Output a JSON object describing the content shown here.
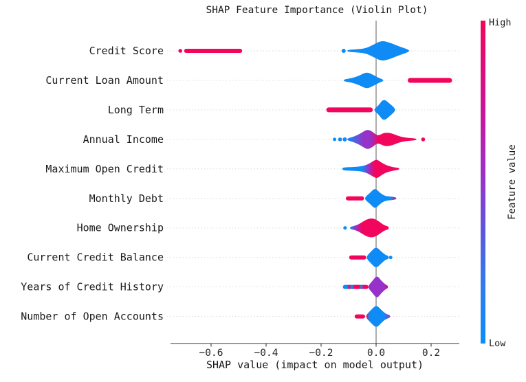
{
  "chart_data": {
    "type": "violin",
    "title": "SHAP Feature Importance (Violin Plot)",
    "xlabel": "SHAP value (impact on model output)",
    "xlim": [
      -0.7475,
      0.3025
    ],
    "grid": "dotted-horizontal",
    "features": [
      "Credit Score",
      "Current Loan Amount",
      "Long Term",
      "Annual Income",
      "Maximum Open Credit",
      "Monthly Debt",
      "Home Ownership",
      "Current Credit Balance",
      "Years of Credit History",
      "Number of Open Accounts"
    ],
    "x_ticks": [
      {
        "v": -0.6,
        "label": "−0.6"
      },
      {
        "v": -0.4,
        "label": "−0.4"
      },
      {
        "v": -0.2,
        "label": "−0.2"
      },
      {
        "v": 0.0,
        "label": "0.0"
      },
      {
        "v": 0.2,
        "label": "0.2"
      }
    ],
    "colorbar": {
      "title": "Feature value",
      "high_label": "High",
      "low_label": "Low"
    },
    "palette": {
      "high": "#f2055c",
      "mid": "#9632c8",
      "low": "#0f8bf5",
      "grid": "#dcdcdc",
      "zero_line": "#8a8a8a",
      "axis": "#333333",
      "cbar_stops": [
        [
          0.0,
          "#f2055c"
        ],
        [
          0.25,
          "#cf1390"
        ],
        [
          0.45,
          "#a32cc4"
        ],
        [
          0.65,
          "#5f55dd"
        ],
        [
          0.82,
          "#2f7cee"
        ],
        [
          1.0,
          "#0b8df8"
        ]
      ]
    },
    "rows": [
      {
        "feature": "Credit Score",
        "shapes": [
          {
            "kind": "dot",
            "x": -0.712,
            "r": 2.8,
            "color": "high"
          },
          {
            "kind": "strip",
            "x1": -0.698,
            "x2": -0.487,
            "h": 6,
            "color": "high"
          },
          {
            "kind": "dot",
            "x": -0.118,
            "r": 3,
            "color": "low"
          },
          {
            "kind": "violin",
            "color": "low",
            "profile": [
              [
                -0.105,
                1.5
              ],
              [
                -0.06,
                2.5
              ],
              [
                -0.035,
                4
              ],
              [
                -0.01,
                9
              ],
              [
                0.02,
                15
              ],
              [
                0.05,
                12
              ],
              [
                0.08,
                7
              ],
              [
                0.12,
                1.5
              ]
            ]
          }
        ]
      },
      {
        "feature": "Current Loan Amount",
        "shapes": [
          {
            "kind": "violin",
            "color": "low",
            "profile": [
              [
                -0.118,
                1.5
              ],
              [
                -0.09,
                3
              ],
              [
                -0.06,
                7
              ],
              [
                -0.035,
                12.5
              ],
              [
                -0.01,
                8
              ],
              [
                0.01,
                3.5
              ],
              [
                0.026,
                1.2
              ]
            ]
          },
          {
            "kind": "strip",
            "x1": 0.115,
            "x2": 0.276,
            "h": 7,
            "color": "high"
          }
        ]
      },
      {
        "feature": "Long Term",
        "shapes": [
          {
            "kind": "strip",
            "x1": -0.181,
            "x2": -0.012,
            "h": 7,
            "color": "high"
          },
          {
            "kind": "violin",
            "color": "low",
            "profile": [
              [
                -0.006,
                2
              ],
              [
                0.008,
                6
              ],
              [
                0.027,
                16.5
              ],
              [
                0.05,
                9
              ],
              [
                0.069,
                2
              ]
            ]
          }
        ]
      },
      {
        "feature": "Annual Income",
        "shapes": [
          {
            "kind": "dot",
            "x": -0.151,
            "r": 2.5,
            "color": "low"
          },
          {
            "kind": "dot",
            "x": -0.131,
            "r": 2.8,
            "color": "low"
          },
          {
            "kind": "dot",
            "x": -0.114,
            "r": 3,
            "color": "low"
          },
          {
            "kind": "violin",
            "gradient": [
              [
                -0.105,
                "low"
              ],
              [
                -0.045,
                "mid"
              ],
              [
                -0.02,
                "mid"
              ],
              [
                0.01,
                "high"
              ],
              [
                0.147,
                "high"
              ]
            ],
            "profile": [
              [
                -0.105,
                1.5
              ],
              [
                -0.08,
                4
              ],
              [
                -0.055,
                9
              ],
              [
                -0.032,
                15
              ],
              [
                -0.012,
                11
              ],
              [
                0.0,
                6.5
              ],
              [
                0.012,
                6
              ],
              [
                0.025,
                9
              ],
              [
                0.04,
                10
              ],
              [
                0.06,
                8.5
              ],
              [
                0.08,
                5
              ],
              [
                0.1,
                3
              ],
              [
                0.12,
                2
              ],
              [
                0.147,
                1.2
              ]
            ]
          },
          {
            "kind": "dot",
            "x": 0.171,
            "r": 2.8,
            "color": "high"
          }
        ]
      },
      {
        "feature": "Maximum Open Credit",
        "shapes": [
          {
            "kind": "violin",
            "gradient": [
              [
                -0.123,
                "low"
              ],
              [
                -0.05,
                "low"
              ],
              [
                -0.028,
                "mid"
              ],
              [
                -0.005,
                "high"
              ],
              [
                0.084,
                "high"
              ]
            ],
            "profile": [
              [
                -0.123,
                2
              ],
              [
                -0.1,
                2.5
              ],
              [
                -0.07,
                3
              ],
              [
                -0.05,
                4
              ],
              [
                -0.03,
                6.5
              ],
              [
                -0.012,
                11
              ],
              [
                0.002,
                14
              ],
              [
                0.015,
                10.5
              ],
              [
                0.03,
                6.5
              ],
              [
                0.05,
                3.5
              ],
              [
                0.068,
                2.2
              ],
              [
                0.084,
                1.2
              ]
            ]
          }
        ]
      },
      {
        "feature": "Monthly Debt",
        "shapes": [
          {
            "kind": "strip",
            "x1": -0.11,
            "x2": -0.044,
            "h": 6,
            "color": "high"
          },
          {
            "kind": "violin",
            "gradient": [
              [
                -0.04,
                "low"
              ],
              [
                0.055,
                "low"
              ],
              [
                0.073,
                "high"
              ]
            ],
            "profile": [
              [
                -0.04,
                2
              ],
              [
                -0.022,
                8
              ],
              [
                -0.004,
                15.5
              ],
              [
                0.014,
                8
              ],
              [
                0.032,
                3.5
              ],
              [
                0.05,
                2.8
              ],
              [
                0.064,
                2.2
              ],
              [
                0.073,
                1.2
              ]
            ]
          }
        ]
      },
      {
        "feature": "Home Ownership",
        "shapes": [
          {
            "kind": "dot",
            "x": -0.113,
            "r": 2.5,
            "color": "low"
          },
          {
            "kind": "violin",
            "gradient": [
              [
                -0.095,
                "low"
              ],
              [
                -0.075,
                "mid"
              ],
              [
                -0.05,
                "high"
              ],
              [
                0.046,
                "high"
              ]
            ],
            "profile": [
              [
                -0.095,
                1.5
              ],
              [
                -0.078,
                3
              ],
              [
                -0.062,
                5.5
              ],
              [
                -0.045,
                10
              ],
              [
                -0.03,
                13
              ],
              [
                -0.015,
                14
              ],
              [
                -0.002,
                12.5
              ],
              [
                0.012,
                9
              ],
              [
                0.025,
                5
              ],
              [
                0.036,
                3
              ],
              [
                0.046,
                1.8
              ]
            ]
          }
        ]
      },
      {
        "feature": "Current Credit Balance",
        "shapes": [
          {
            "kind": "strip",
            "x1": -0.098,
            "x2": -0.036,
            "h": 6,
            "color": "high"
          },
          {
            "kind": "violin",
            "color": "low",
            "profile": [
              [
                -0.034,
                2
              ],
              [
                -0.018,
                9
              ],
              [
                0.0,
                16
              ],
              [
                0.018,
                9
              ],
              [
                0.034,
                3.5
              ],
              [
                0.046,
                2
              ]
            ]
          },
          {
            "kind": "dot",
            "x": 0.053,
            "r": 2.5,
            "color": "low"
          }
        ]
      },
      {
        "feature": "Years of Credit History",
        "shapes": [
          {
            "kind": "strip",
            "x1": -0.121,
            "x2": -0.028,
            "h": 6,
            "gradient": [
              [
                -0.121,
                "low"
              ],
              [
                -0.104,
                "low"
              ],
              [
                -0.1,
                "high"
              ],
              [
                -0.088,
                "low"
              ],
              [
                -0.078,
                "high"
              ],
              [
                -0.062,
                "high"
              ],
              [
                -0.055,
                "low"
              ],
              [
                -0.045,
                "high"
              ],
              [
                -0.028,
                "high"
              ]
            ]
          },
          {
            "kind": "violin",
            "gradient": [
              [
                -0.028,
                "mid"
              ],
              [
                0.03,
                "mid"
              ],
              [
                0.043,
                "high"
              ]
            ],
            "profile": [
              [
                -0.028,
                2
              ],
              [
                -0.013,
                9
              ],
              [
                0.003,
                17
              ],
              [
                0.019,
                9
              ],
              [
                0.034,
                3.5
              ],
              [
                0.043,
                1.8
              ]
            ]
          }
        ]
      },
      {
        "feature": "Number of Open Accounts",
        "shapes": [
          {
            "kind": "strip",
            "x1": -0.078,
            "x2": -0.04,
            "h": 6,
            "color": "high"
          },
          {
            "kind": "violin",
            "gradient": [
              [
                -0.036,
                "high"
              ],
              [
                -0.025,
                "low"
              ],
              [
                0.03,
                "low"
              ],
              [
                0.051,
                "mid"
              ]
            ],
            "profile": [
              [
                -0.036,
                2
              ],
              [
                -0.02,
                9
              ],
              [
                0.001,
                17
              ],
              [
                0.02,
                9
              ],
              [
                0.036,
                3.5
              ],
              [
                0.051,
                1.8
              ]
            ]
          }
        ]
      }
    ]
  }
}
